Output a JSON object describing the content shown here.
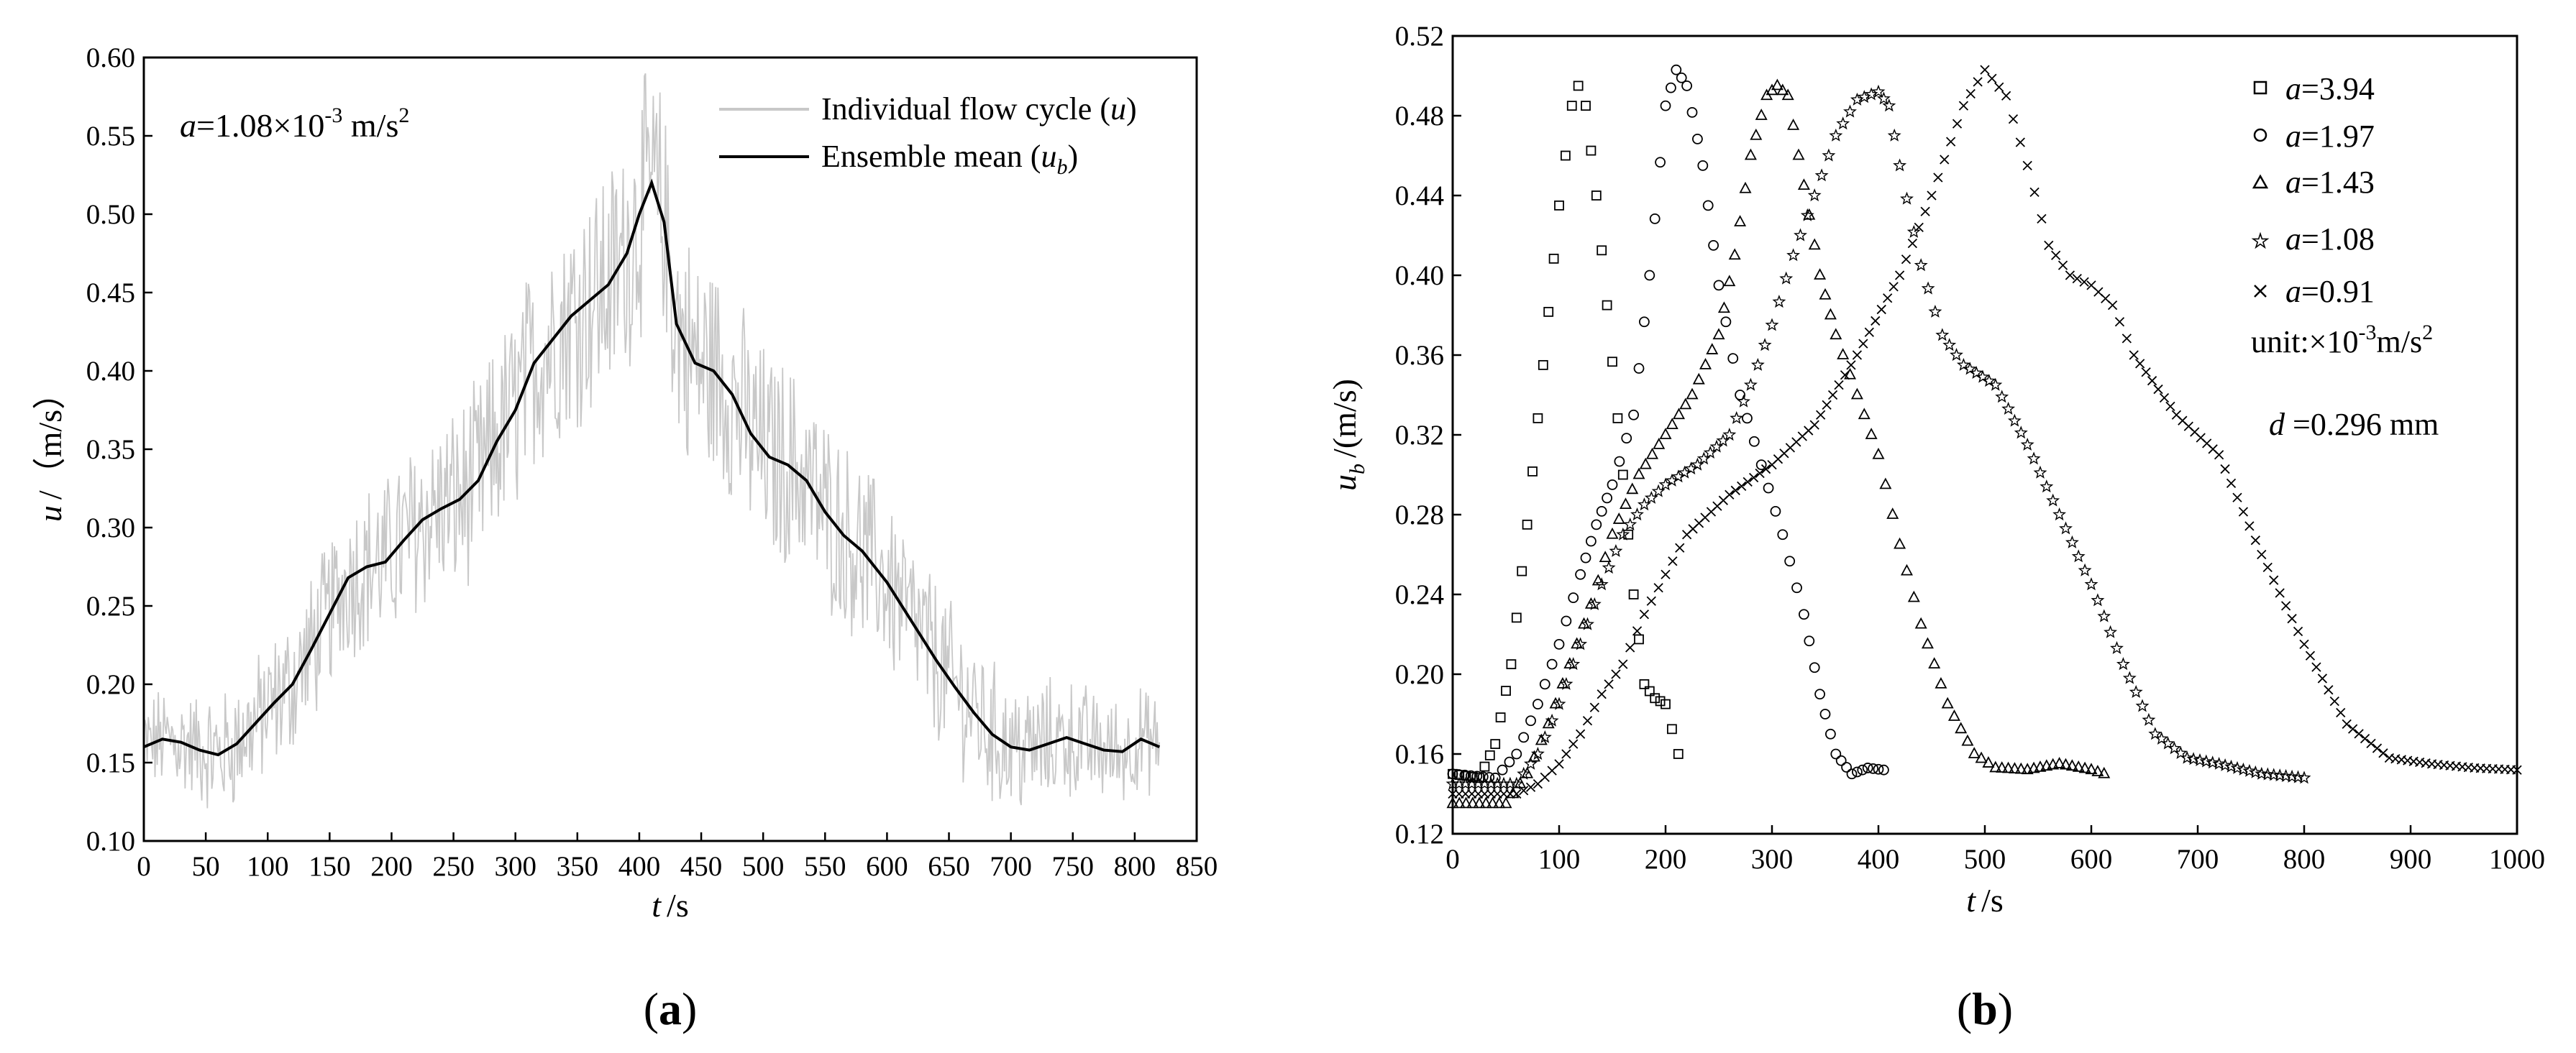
{
  "chart_data": [
    {
      "type": "line",
      "panel_label": "a",
      "xlabel": "t",
      "xunit": "/s",
      "ylabel": "u",
      "yunit": "/（m/s）",
      "xlim": [
        0,
        850
      ],
      "ylim": [
        0.1,
        0.6
      ],
      "xticks": [
        "0",
        "50",
        "100",
        "150",
        "200",
        "250",
        "300",
        "350",
        "400",
        "450",
        "500",
        "550",
        "600",
        "650",
        "700",
        "750",
        "800",
        "850"
      ],
      "yticks": [
        "0.10",
        "0.15",
        "0.20",
        "0.25",
        "0.30",
        "0.35",
        "0.40",
        "0.45",
        "0.50",
        "0.55",
        "0.60"
      ],
      "annotation": {
        "var": "a",
        "eq": "=1.08×10",
        "exp": "-3",
        "unit": " m/s",
        "unit_exp": "2"
      },
      "legend": [
        {
          "label": "Individual flow cycle (",
          "var": "u",
          "close": ")",
          "color": "#c8c8c8"
        },
        {
          "label": "Ensemble mean (",
          "var": "u",
          "sub": "b",
          "close": ")",
          "color": "#000000"
        }
      ],
      "series": [
        {
          "name": "Ensemble mean",
          "x": [
            0,
            15,
            30,
            45,
            60,
            75,
            90,
            105,
            120,
            135,
            150,
            165,
            180,
            195,
            210,
            225,
            240,
            255,
            270,
            285,
            300,
            315,
            330,
            345,
            360,
            375,
            390,
            400,
            410,
            420,
            430,
            445,
            460,
            475,
            490,
            505,
            520,
            535,
            550,
            565,
            580,
            600,
            620,
            640,
            655,
            670,
            685,
            700,
            715,
            730,
            745,
            760,
            775,
            790,
            805,
            820
          ],
          "y": [
            0.16,
            0.165,
            0.163,
            0.158,
            0.155,
            0.162,
            0.175,
            0.188,
            0.2,
            0.222,
            0.245,
            0.268,
            0.275,
            0.278,
            0.292,
            0.305,
            0.312,
            0.318,
            0.33,
            0.355,
            0.375,
            0.405,
            0.42,
            0.435,
            0.445,
            0.455,
            0.475,
            0.5,
            0.52,
            0.495,
            0.43,
            0.405,
            0.4,
            0.385,
            0.36,
            0.345,
            0.34,
            0.33,
            0.31,
            0.295,
            0.285,
            0.265,
            0.24,
            0.215,
            0.198,
            0.182,
            0.168,
            0.16,
            0.158,
            0.162,
            0.166,
            0.162,
            0.158,
            0.157,
            0.165,
            0.16
          ]
        }
      ]
    },
    {
      "type": "scatter",
      "panel_label": "b",
      "xlabel": "t",
      "xunit": "/s",
      "ylabel": "u",
      "ylabel_sub": "b",
      "yunit": "/(m/s)",
      "xlim": [
        0,
        1000
      ],
      "ylim": [
        0.12,
        0.52
      ],
      "xticks": [
        "0",
        "100",
        "200",
        "300",
        "400",
        "500",
        "600",
        "700",
        "800",
        "900",
        "1000"
      ],
      "yticks": [
        "0.12",
        "0.16",
        "0.20",
        "0.24",
        "0.28",
        "0.32",
        "0.36",
        "0.40",
        "0.44",
        "0.48",
        "0.52"
      ],
      "legend": [
        {
          "marker": "square",
          "var": "a",
          "value": "=3.94"
        },
        {
          "marker": "circle",
          "var": "a",
          "value": "=1.97"
        },
        {
          "marker": "triangle",
          "var": "a",
          "value": "=1.43"
        },
        {
          "marker": "star",
          "var": "a",
          "value": "=1.08"
        },
        {
          "marker": "cross",
          "var": "a",
          "value": "=0.91"
        }
      ],
      "unit_note": {
        "text": "unit:×10",
        "exp": "-3",
        "rest": "m/s",
        "rest_exp": "2"
      },
      "d_note": {
        "var": "d",
        "text": " =0.296 mm"
      },
      "series": [
        {
          "name": "a=3.94",
          "marker": "square",
          "x": [
            0,
            25,
            40,
            55,
            70,
            85,
            100,
            112,
            118,
            125,
            135,
            145,
            160,
            170,
            180,
            190,
            200,
            212
          ],
          "y": [
            0.15,
            0.148,
            0.165,
            0.205,
            0.275,
            0.355,
            0.435,
            0.485,
            0.495,
            0.485,
            0.44,
            0.385,
            0.3,
            0.24,
            0.195,
            0.188,
            0.185,
            0.16
          ]
        },
        {
          "name": "a=1.97",
          "marker": "circle",
          "x": [
            0,
            40,
            60,
            80,
            100,
            120,
            135,
            150,
            170,
            185,
            200,
            210,
            220,
            235,
            250,
            270,
            290,
            310,
            330,
            345,
            360,
            375,
            390,
            405
          ],
          "y": [
            0.15,
            0.148,
            0.16,
            0.185,
            0.215,
            0.25,
            0.275,
            0.295,
            0.33,
            0.4,
            0.485,
            0.503,
            0.495,
            0.455,
            0.395,
            0.34,
            0.305,
            0.27,
            0.23,
            0.19,
            0.16,
            0.15,
            0.153,
            0.152
          ]
        },
        {
          "name": "a=1.43",
          "marker": "triangle",
          "x": [
            0,
            50,
            70,
            90,
            110,
            130,
            150,
            175,
            200,
            225,
            250,
            265,
            280,
            295,
            305,
            315,
            330,
            345,
            360,
            380,
            400,
            420,
            440,
            465,
            490,
            510,
            540,
            570,
            600,
            612
          ],
          "y": [
            0.135,
            0.135,
            0.15,
            0.175,
            0.205,
            0.235,
            0.27,
            0.3,
            0.32,
            0.34,
            0.37,
            0.41,
            0.46,
            0.49,
            0.495,
            0.49,
            0.445,
            0.4,
            0.37,
            0.34,
            0.31,
            0.265,
            0.225,
            0.185,
            0.16,
            0.153,
            0.152,
            0.155,
            0.152,
            0.15
          ]
        },
        {
          "name": "a=1.08",
          "marker": "star",
          "x": [
            0,
            60,
            80,
            100,
            120,
            140,
            160,
            180,
            200,
            230,
            260,
            280,
            300,
            320,
            340,
            360,
            380,
            400,
            410,
            420,
            440,
            460,
            480,
            510,
            540,
            570,
            600,
            630,
            660,
            690,
            720,
            760,
            800
          ],
          "y": [
            0.145,
            0.145,
            0.16,
            0.185,
            0.215,
            0.245,
            0.27,
            0.285,
            0.295,
            0.305,
            0.32,
            0.345,
            0.375,
            0.41,
            0.44,
            0.47,
            0.488,
            0.492,
            0.485,
            0.455,
            0.405,
            0.37,
            0.355,
            0.345,
            0.315,
            0.28,
            0.245,
            0.205,
            0.17,
            0.158,
            0.155,
            0.15,
            0.148
          ]
        },
        {
          "name": "a=0.91",
          "marker": "cross",
          "x": [
            0,
            60,
            80,
            100,
            120,
            140,
            160,
            180,
            200,
            220,
            260,
            300,
            340,
            380,
            420,
            450,
            480,
            500,
            520,
            540,
            560,
            580,
            600,
            620,
            640,
            680,
            720,
            760,
            800,
            840,
            880,
            920,
            960,
            1000
          ],
          "y": [
            0.14,
            0.14,
            0.145,
            0.155,
            0.17,
            0.19,
            0.205,
            0.23,
            0.25,
            0.27,
            0.29,
            0.305,
            0.325,
            0.36,
            0.4,
            0.44,
            0.485,
            0.503,
            0.49,
            0.455,
            0.415,
            0.4,
            0.395,
            0.385,
            0.36,
            0.33,
            0.31,
            0.26,
            0.215,
            0.175,
            0.158,
            0.155,
            0.153,
            0.152
          ]
        }
      ]
    }
  ]
}
